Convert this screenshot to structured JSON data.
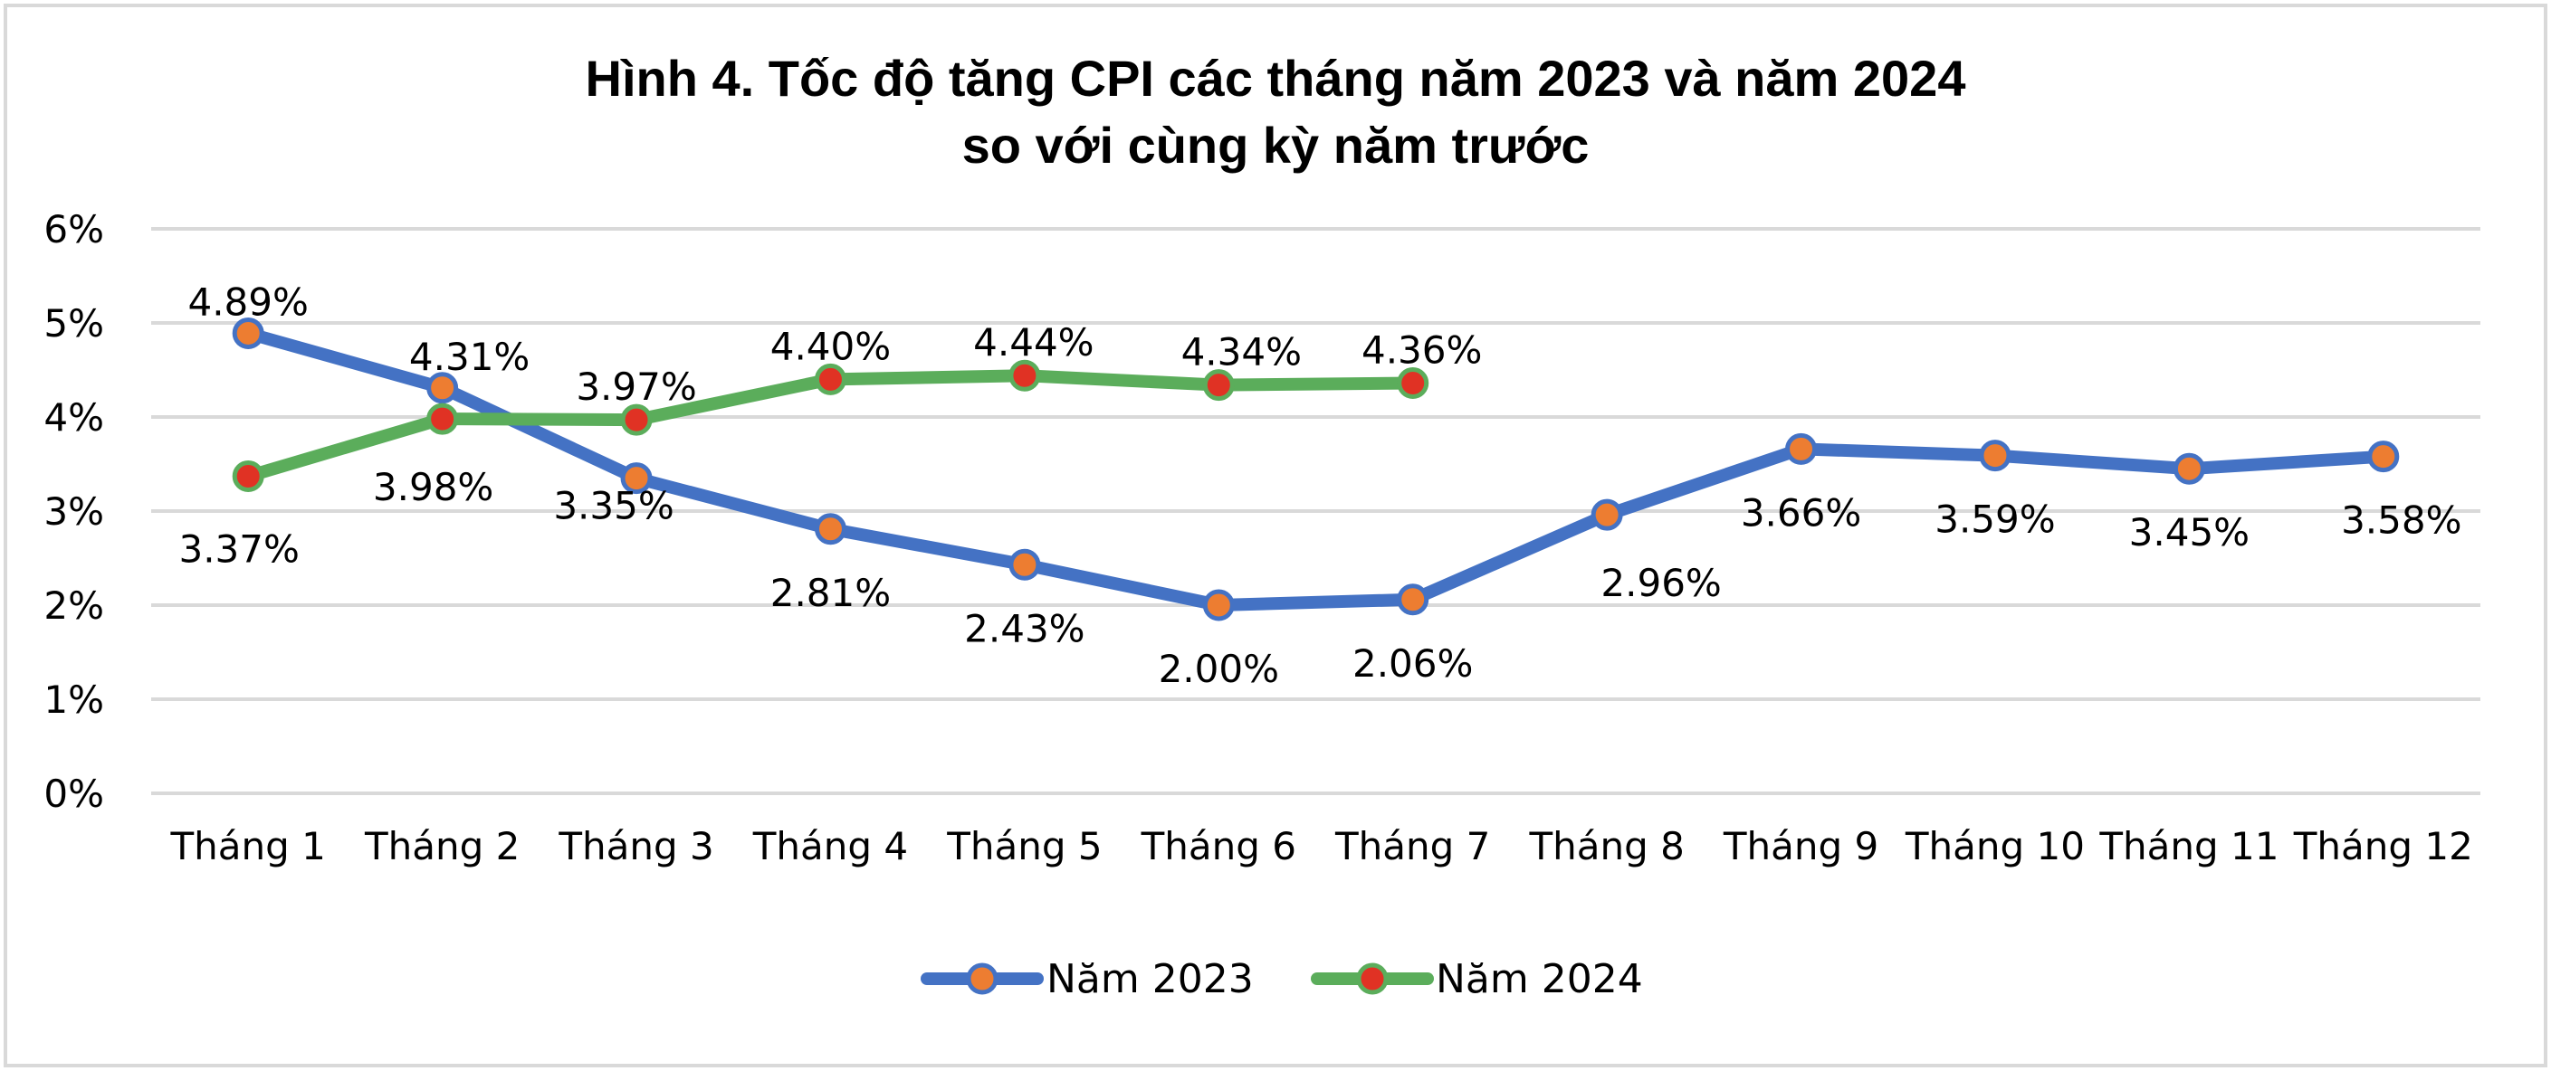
{
  "chart_data": {
    "type": "line",
    "title": "Hình 4. Tốc độ tăng CPI các tháng năm 2023 và năm 2024",
    "subtitle": "so với cùng kỳ năm trước",
    "xlabel": "",
    "ylabel": "",
    "ylim": [
      0,
      6
    ],
    "yticks": [
      "0%",
      "1%",
      "2%",
      "3%",
      "4%",
      "5%",
      "6%"
    ],
    "grid": true,
    "legend_position": "bottom",
    "categories": [
      "Tháng 1",
      "Tháng 2",
      "Tháng 3",
      "Tháng 4",
      "Tháng 5",
      "Tháng 6",
      "Tháng 7",
      "Tháng 8",
      "Tháng 9",
      "Tháng 10",
      "Tháng 11",
      "Tháng 12"
    ],
    "series": [
      {
        "name": "Năm 2023",
        "line_color": "#4472c4",
        "marker_color": "#ed7d31",
        "values": [
          4.89,
          4.31,
          3.35,
          2.81,
          2.43,
          2.0,
          2.06,
          2.96,
          3.66,
          3.59,
          3.45,
          3.58
        ],
        "labels": [
          "4.89%",
          "4.31%",
          "3.35%",
          "2.81%",
          "2.43%",
          "2.00%",
          "2.06%",
          "2.96%",
          "3.66%",
          "3.59%",
          "3.45%",
          "3.58%"
        ]
      },
      {
        "name": "Năm 2024",
        "line_color": "#5bad5b",
        "marker_color": "#e03224",
        "values": [
          3.37,
          3.98,
          3.97,
          4.4,
          4.44,
          4.34,
          4.36
        ],
        "labels": [
          "3.37%",
          "3.98%",
          "3.97%",
          "4.40%",
          "4.44%",
          "4.34%",
          "4.36%"
        ]
      }
    ]
  }
}
